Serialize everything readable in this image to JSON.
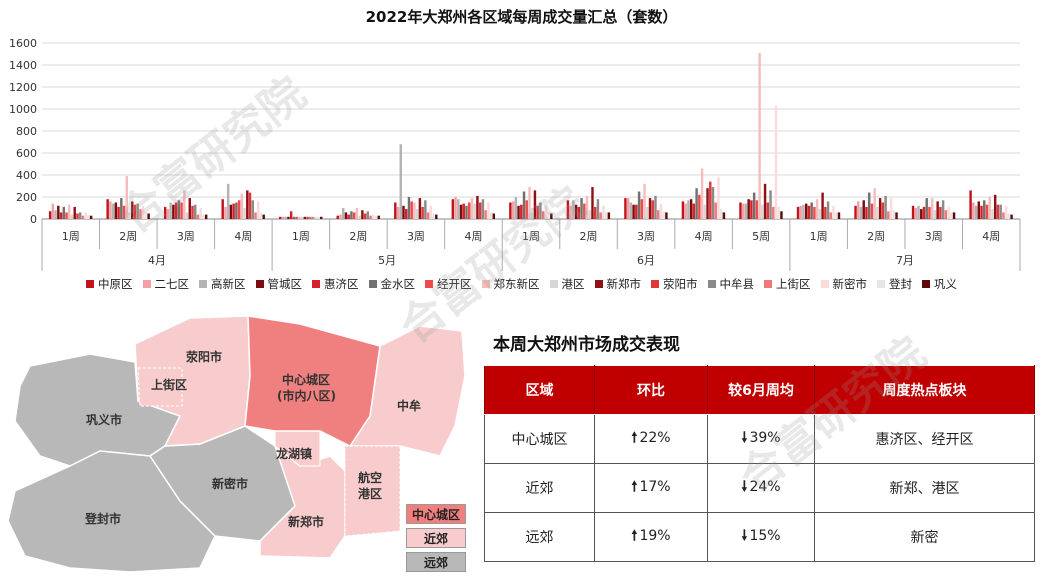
{
  "chart_data": {
    "type": "bar",
    "title": "2022年大郑州各区域每周成交量汇总（套数）",
    "ylim": [
      0,
      1600
    ],
    "yticks": [
      0,
      200,
      400,
      600,
      800,
      1000,
      1200,
      1400,
      1600
    ],
    "grid": true,
    "legend_position": "bottom",
    "months": [
      {
        "label": "4月",
        "weeks": 4
      },
      {
        "label": "5月",
        "weeks": 4
      },
      {
        "label": "6月",
        "weeks": 5
      },
      {
        "label": "7月",
        "weeks": 4
      }
    ],
    "categories": [
      "1周",
      "2周",
      "3周",
      "4周",
      "1周",
      "2周",
      "3周",
      "4周",
      "1周",
      "2周",
      "3周",
      "4周",
      "5周",
      "1周",
      "2周",
      "3周",
      "4周"
    ],
    "series": [
      {
        "name": "中原区",
        "color": "#c0141c",
        "values": [
          70,
          180,
          110,
          180,
          20,
          30,
          150,
          180,
          150,
          170,
          190,
          160,
          150,
          110,
          120,
          120,
          260
        ]
      },
      {
        "name": "二七区",
        "color": "#f2a0a6",
        "values": [
          140,
          160,
          90,
          110,
          20,
          40,
          110,
          200,
          160,
          120,
          190,
          140,
          140,
          120,
          160,
          100,
          150
        ]
      },
      {
        "name": "高新区",
        "color": "#b3b3b3",
        "values": [
          80,
          140,
          150,
          320,
          20,
          100,
          680,
          180,
          200,
          170,
          150,
          170,
          140,
          130,
          110,
          120,
          120
        ]
      },
      {
        "name": "管城区",
        "color": "#7a0c10",
        "values": [
          120,
          150,
          130,
          130,
          20,
          60,
          120,
          130,
          120,
          130,
          130,
          180,
          180,
          140,
          170,
          90,
          160
        ]
      },
      {
        "name": "惠济区",
        "color": "#d82028",
        "values": [
          60,
          110,
          150,
          140,
          70,
          40,
          90,
          140,
          130,
          110,
          130,
          140,
          170,
          120,
          110,
          110,
          120
        ]
      },
      {
        "name": "金水区",
        "color": "#707070",
        "values": [
          110,
          190,
          170,
          150,
          20,
          70,
          200,
          120,
          250,
          190,
          250,
          280,
          240,
          150,
          240,
          190,
          170
        ]
      },
      {
        "name": "经开区",
        "color": "#ee4a4a",
        "values": [
          60,
          120,
          150,
          170,
          20,
          60,
          160,
          150,
          170,
          140,
          180,
          220,
          170,
          110,
          140,
          110,
          130
        ]
      },
      {
        "name": "郑东新区",
        "color": "#f6bcbc",
        "values": [
          130,
          390,
          260,
          230,
          20,
          100,
          150,
          190,
          290,
          210,
          320,
          460,
          1510,
          180,
          280,
          190,
          200
        ]
      },
      {
        "name": "港区",
        "color": "#d6d6d6",
        "values": [
          40,
          60,
          60,
          100,
          20,
          30,
          90,
          140,
          100,
          80,
          110,
          130,
          130,
          90,
          110,
          80,
          90
        ]
      },
      {
        "name": "新郑市",
        "color": "#8e1116",
        "values": [
          110,
          160,
          190,
          260,
          20,
          80,
          190,
          210,
          260,
          290,
          190,
          280,
          320,
          240,
          190,
          160,
          220
        ]
      },
      {
        "name": "荥阳市",
        "color": "#e03838",
        "values": [
          50,
          130,
          120,
          240,
          20,
          50,
          110,
          150,
          120,
          110,
          170,
          340,
          150,
          110,
          150,
          110,
          130
        ]
      },
      {
        "name": "中牟县",
        "color": "#8a8a8a",
        "values": [
          60,
          140,
          130,
          170,
          20,
          70,
          170,
          180,
          150,
          180,
          210,
          290,
          260,
          160,
          210,
          170,
          130
        ]
      },
      {
        "name": "上街区",
        "color": "#f07878",
        "values": [
          30,
          90,
          40,
          60,
          20,
          30,
          60,
          80,
          70,
          60,
          80,
          150,
          110,
          60,
          70,
          80,
          60
        ]
      },
      {
        "name": "新密市",
        "color": "#fbdada",
        "values": [
          60,
          120,
          100,
          160,
          20,
          40,
          120,
          150,
          120,
          120,
          140,
          380,
          1030,
          120,
          190,
          110,
          120
        ]
      },
      {
        "name": "登封",
        "color": "#e6e6e6",
        "values": [
          40,
          60,
          40,
          60,
          20,
          30,
          50,
          60,
          60,
          60,
          70,
          90,
          110,
          60,
          80,
          60,
          50
        ]
      },
      {
        "name": "巩义",
        "color": "#5c0a0c",
        "values": [
          30,
          50,
          40,
          40,
          20,
          30,
          40,
          50,
          50,
          60,
          60,
          60,
          70,
          60,
          60,
          60,
          40
        ]
      }
    ]
  },
  "watermark": "合富研究院",
  "map": {
    "regions": [
      "荥阳市",
      "上街区",
      "中心城区\n(市内八区)",
      "中牟",
      "巩义市",
      "龙湖镇",
      "航空\n港区",
      "新密市",
      "登封市",
      "新郑市"
    ],
    "labels": {
      "xingyang": "荥阳市",
      "shangjie": "上街区",
      "center_1": "中心城区",
      "center_2": "(市内八区)",
      "zhongmou": "中牟",
      "gongyi": "巩义市",
      "longhu": "龙湖镇",
      "airport_1": "航空",
      "airport_2": "港区",
      "xinmi": "新密市",
      "dengfeng": "登封市",
      "xinzheng": "新郑市"
    },
    "key": {
      "center": "中心城区",
      "near": "近郊",
      "far": "远郊"
    },
    "colors": {
      "center": "#f08080",
      "near": "#f8cccc",
      "far": "#b8b8b8"
    }
  },
  "table": {
    "title": "本周大郑州市场成交表现",
    "headers": [
      "区域",
      "环比",
      "较6月周均",
      "周度热点板块"
    ],
    "rows": [
      {
        "area": "中心城区",
        "wow": "22%",
        "wow_dir": "up",
        "vs_june": "39%",
        "vs_june_dir": "down",
        "hot": "惠济区、经开区"
      },
      {
        "area": "近郊",
        "wow": "17%",
        "wow_dir": "up",
        "vs_june": "24%",
        "vs_june_dir": "down",
        "hot": "新郑、港区"
      },
      {
        "area": "远郊",
        "wow": "19%",
        "wow_dir": "up",
        "vs_june": "15%",
        "vs_june_dir": "down",
        "hot": "新密"
      }
    ]
  }
}
